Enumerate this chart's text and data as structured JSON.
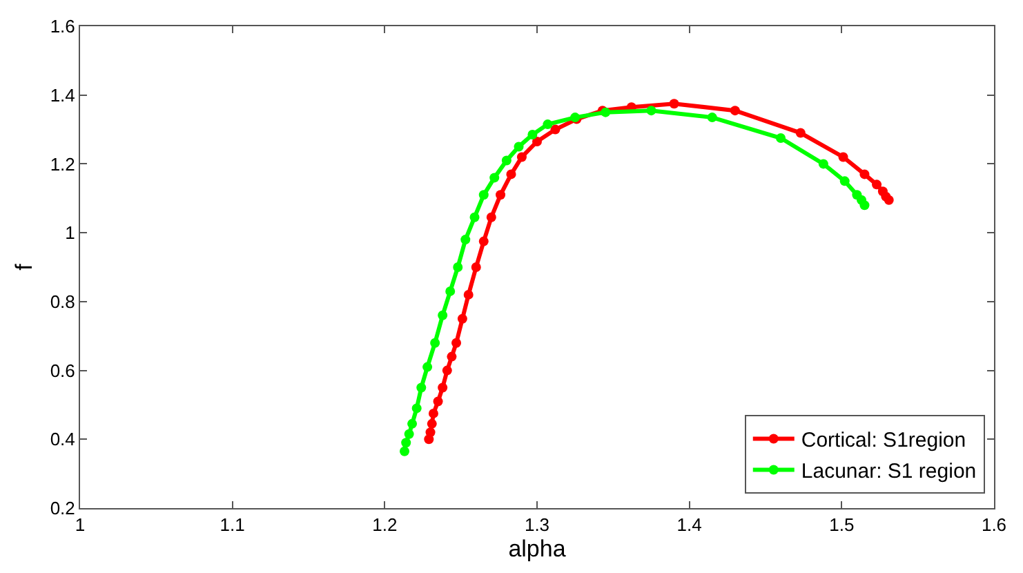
{
  "chart_data": {
    "type": "line",
    "xlabel": "alpha",
    "ylabel": "f",
    "xlim": [
      1,
      1.6
    ],
    "ylim": [
      0.2,
      1.6
    ],
    "xticks": [
      1,
      1.1,
      1.2,
      1.3,
      1.4,
      1.5,
      1.6
    ],
    "yticks": [
      0.2,
      0.4,
      0.6,
      0.8,
      1,
      1.2,
      1.4,
      1.6
    ],
    "legend": "bottom right",
    "marker": "circle",
    "line_style": "solid",
    "series": [
      {
        "name": "Cortical: S1region",
        "color": "#ff0000",
        "x": [
          1.229,
          1.23,
          1.231,
          1.232,
          1.235,
          1.238,
          1.241,
          1.244,
          1.247,
          1.251,
          1.255,
          1.26,
          1.265,
          1.27,
          1.276,
          1.283,
          1.29,
          1.3,
          1.312,
          1.326,
          1.343,
          1.362,
          1.39,
          1.43,
          1.473,
          1.501,
          1.515,
          1.523,
          1.527,
          1.529,
          1.531
        ],
        "values": [
          0.4,
          0.42,
          0.445,
          0.475,
          0.51,
          0.55,
          0.6,
          0.64,
          0.68,
          0.75,
          0.82,
          0.9,
          0.975,
          1.045,
          1.11,
          1.17,
          1.22,
          1.265,
          1.3,
          1.33,
          1.355,
          1.365,
          1.375,
          1.355,
          1.29,
          1.22,
          1.17,
          1.14,
          1.12,
          1.105,
          1.095
        ]
      },
      {
        "name": "Lacunar: S1 region",
        "color": "#00ff00",
        "x": [
          1.213,
          1.214,
          1.216,
          1.218,
          1.221,
          1.224,
          1.228,
          1.233,
          1.238,
          1.243,
          1.248,
          1.253,
          1.259,
          1.265,
          1.272,
          1.28,
          1.288,
          1.297,
          1.307,
          1.325,
          1.345,
          1.375,
          1.415,
          1.46,
          1.488,
          1.502,
          1.51,
          1.513,
          1.515
        ],
        "values": [
          0.365,
          0.39,
          0.415,
          0.445,
          0.49,
          0.55,
          0.61,
          0.68,
          0.76,
          0.83,
          0.9,
          0.98,
          1.045,
          1.11,
          1.16,
          1.21,
          1.25,
          1.285,
          1.315,
          1.335,
          1.35,
          1.355,
          1.335,
          1.275,
          1.2,
          1.15,
          1.11,
          1.095,
          1.08
        ]
      }
    ]
  }
}
